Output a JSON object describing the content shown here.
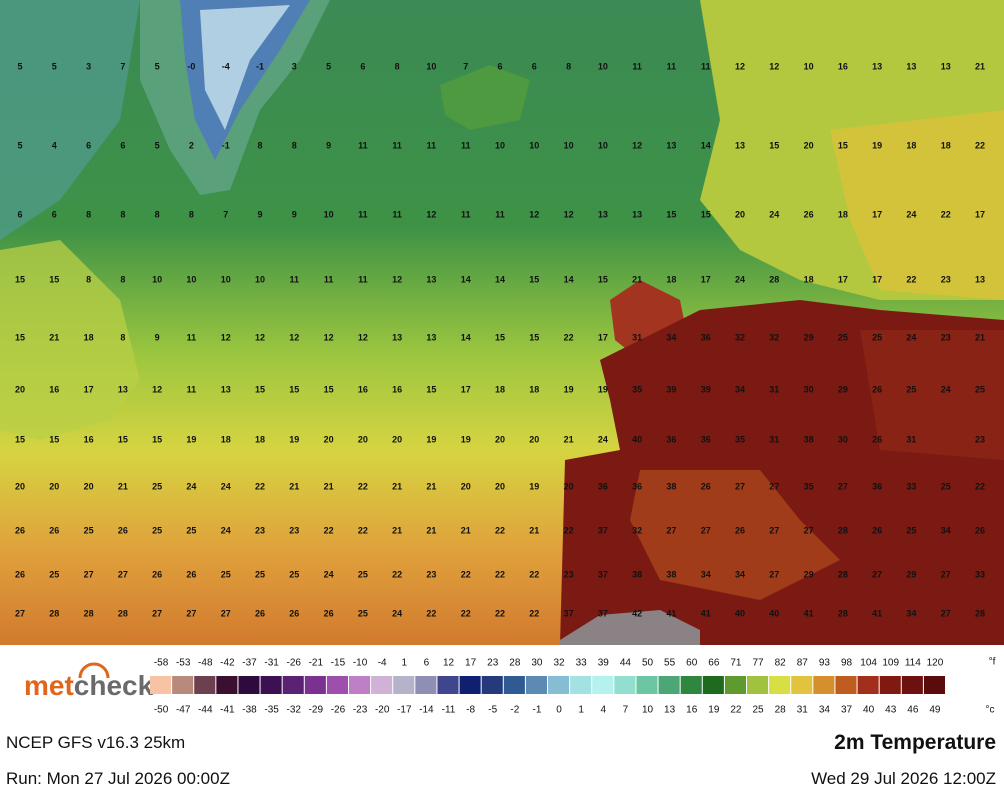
{
  "logo": {
    "part1": "met",
    "part2": "check"
  },
  "model": "NCEP GFS v16.3 25km",
  "field": "2m Temperature",
  "run": "Run: Mon 27 Jul 2026 00:00Z",
  "valid": "Wed 29 Jul 2026 12:00Z",
  "grid": [
    [
      5,
      5,
      3,
      7,
      5,
      "-0",
      -4,
      -1,
      3,
      5,
      6,
      8,
      10,
      7,
      6,
      6,
      8,
      10,
      11,
      11,
      11,
      12,
      12,
      10,
      16,
      13,
      13,
      13,
      21
    ],
    [
      5,
      4,
      6,
      6,
      5,
      2,
      -1,
      8,
      8,
      9,
      11,
      11,
      11,
      11,
      10,
      10,
      10,
      10,
      12,
      13,
      14,
      13,
      15,
      20,
      15,
      19,
      18,
      18,
      22
    ],
    [
      6,
      6,
      8,
      8,
      8,
      8,
      7,
      9,
      9,
      10,
      11,
      11,
      12,
      11,
      11,
      12,
      12,
      13,
      13,
      15,
      15,
      20,
      24,
      26,
      18,
      17,
      24,
      22,
      17
    ],
    [
      15,
      15,
      8,
      8,
      10,
      10,
      10,
      10,
      11,
      11,
      11,
      12,
      13,
      14,
      14,
      15,
      14,
      15,
      21,
      18,
      17,
      24,
      28,
      18,
      17,
      17,
      22,
      23,
      13
    ],
    [
      15,
      21,
      18,
      8,
      9,
      11,
      12,
      12,
      12,
      12,
      12,
      13,
      13,
      14,
      15,
      15,
      22,
      17,
      31,
      34,
      36,
      32,
      32,
      29,
      25,
      25,
      24,
      23,
      21
    ],
    [
      20,
      16,
      17,
      13,
      12,
      11,
      13,
      15,
      15,
      15,
      16,
      16,
      15,
      17,
      18,
      18,
      19,
      19,
      35,
      39,
      39,
      34,
      31,
      30,
      29,
      26,
      25,
      24,
      25
    ],
    [
      15,
      15,
      16,
      15,
      15,
      19,
      18,
      18,
      19,
      20,
      20,
      20,
      19,
      19,
      20,
      20,
      21,
      24,
      40,
      36,
      36,
      35,
      31,
      38,
      30,
      26,
      31,
      null,
      23
    ],
    [
      20,
      20,
      20,
      21,
      25,
      24,
      24,
      22,
      21,
      21,
      22,
      21,
      21,
      20,
      20,
      19,
      20,
      36,
      36,
      38,
      26,
      27,
      27,
      35,
      27,
      36,
      33,
      25,
      22
    ],
    [
      26,
      26,
      25,
      26,
      25,
      25,
      24,
      23,
      23,
      22,
      22,
      21,
      21,
      21,
      22,
      21,
      22,
      37,
      32,
      27,
      27,
      26,
      27,
      27,
      28,
      26,
      25,
      34,
      26
    ],
    [
      26,
      25,
      27,
      27,
      26,
      26,
      25,
      25,
      25,
      24,
      25,
      22,
      23,
      22,
      22,
      22,
      23,
      37,
      38,
      38,
      34,
      34,
      27,
      29,
      28,
      27,
      29,
      27,
      33
    ],
    [
      27,
      28,
      28,
      28,
      27,
      27,
      27,
      26,
      26,
      26,
      25,
      24,
      22,
      22,
      22,
      22,
      37,
      37,
      42,
      41,
      41,
      40,
      40,
      41,
      28,
      41,
      34,
      27,
      28
    ]
  ],
  "legend": {
    "unit_f": "°f",
    "unit_c": "°c",
    "fahrenheit": [
      -58,
      -53,
      -48,
      -42,
      -37,
      -31,
      -26,
      -21,
      -15,
      -10,
      -4,
      1,
      6,
      12,
      17,
      23,
      28,
      30,
      32,
      33,
      39,
      44,
      50,
      55,
      60,
      66,
      71,
      77,
      82,
      87,
      93,
      98,
      104,
      109,
      114,
      120
    ],
    "celsius": [
      -50,
      -47,
      -44,
      -41,
      -38,
      -35,
      -32,
      -29,
      -26,
      -23,
      -20,
      -17,
      -14,
      -11,
      -8,
      -5,
      -2,
      -1,
      0,
      1,
      4,
      7,
      10,
      13,
      16,
      19,
      22,
      25,
      28,
      31,
      34,
      37,
      40,
      43,
      46,
      49
    ],
    "colors": [
      "#f7c3a3",
      "#b88a7c",
      "#6e3f4f",
      "#3a0f2f",
      "#2e0b3e",
      "#3c1154",
      "#5b2173",
      "#7a3190",
      "#9e4fae",
      "#bf7fc6",
      "#d0b2d6",
      "#b4b3c9",
      "#8f8fb6",
      "#3f468e",
      "#0f2070",
      "#243a7c",
      "#305a92",
      "#5d8ab2",
      "#86bcd4",
      "#a4e1e2",
      "#b4f1ef",
      "#92dfcf",
      "#6cc6a4",
      "#4ca675",
      "#2f873f",
      "#1e6a1f",
      "#5f9a2e",
      "#a0c23f",
      "#d7df43",
      "#e1c33f",
      "#d58f2d",
      "#bf5c1f",
      "#a12f1c",
      "#801a10",
      "#6c1010",
      "#5a0c0c"
    ]
  }
}
